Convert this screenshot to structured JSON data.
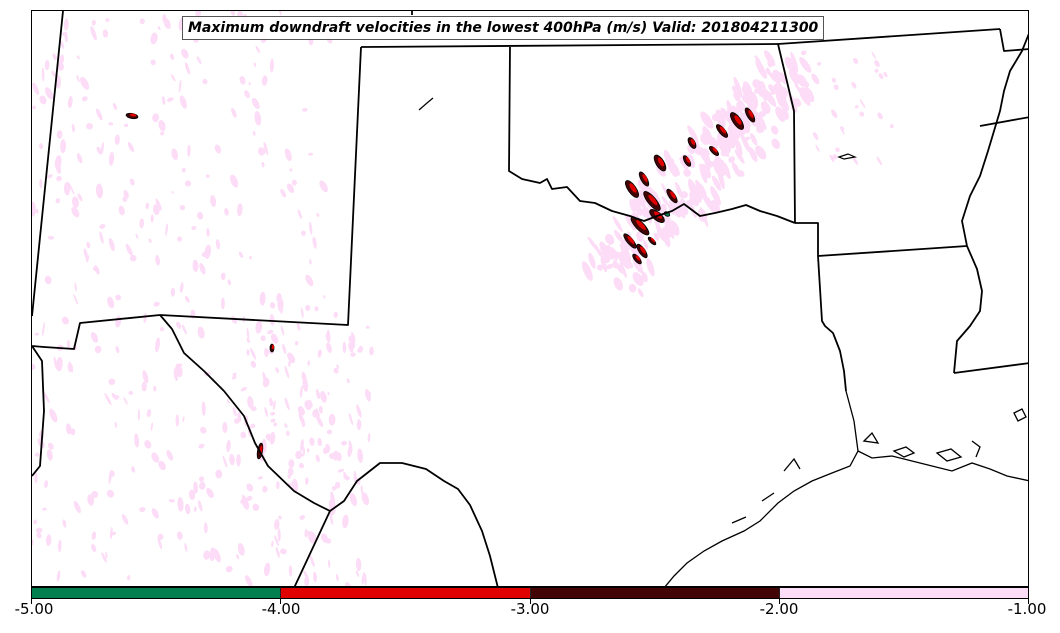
{
  "map": {
    "title": "Maximum downdraft velocities in the lowest 400hPa (m/s) Valid: 201804211300",
    "colorbar": {
      "ticks": [
        "-5.00",
        "-4.00",
        "-3.00",
        "-2.00",
        "-1.00"
      ],
      "bins": [
        {
          "range": [
            -5.0,
            -4.0
          ],
          "color": "#027f4f"
        },
        {
          "range": [
            -4.0,
            -3.0
          ],
          "color": "#e00000"
        },
        {
          "range": [
            -3.0,
            -2.0
          ],
          "color": "#420404"
        },
        {
          "range": [
            -2.0,
            -1.0
          ],
          "color": "#fcdcf6"
        }
      ]
    },
    "colors": {
      "light": "#fcdcf6",
      "red": "#e00000",
      "dark": "#420404",
      "green": "#027f4f",
      "border": "#000000"
    }
  }
}
